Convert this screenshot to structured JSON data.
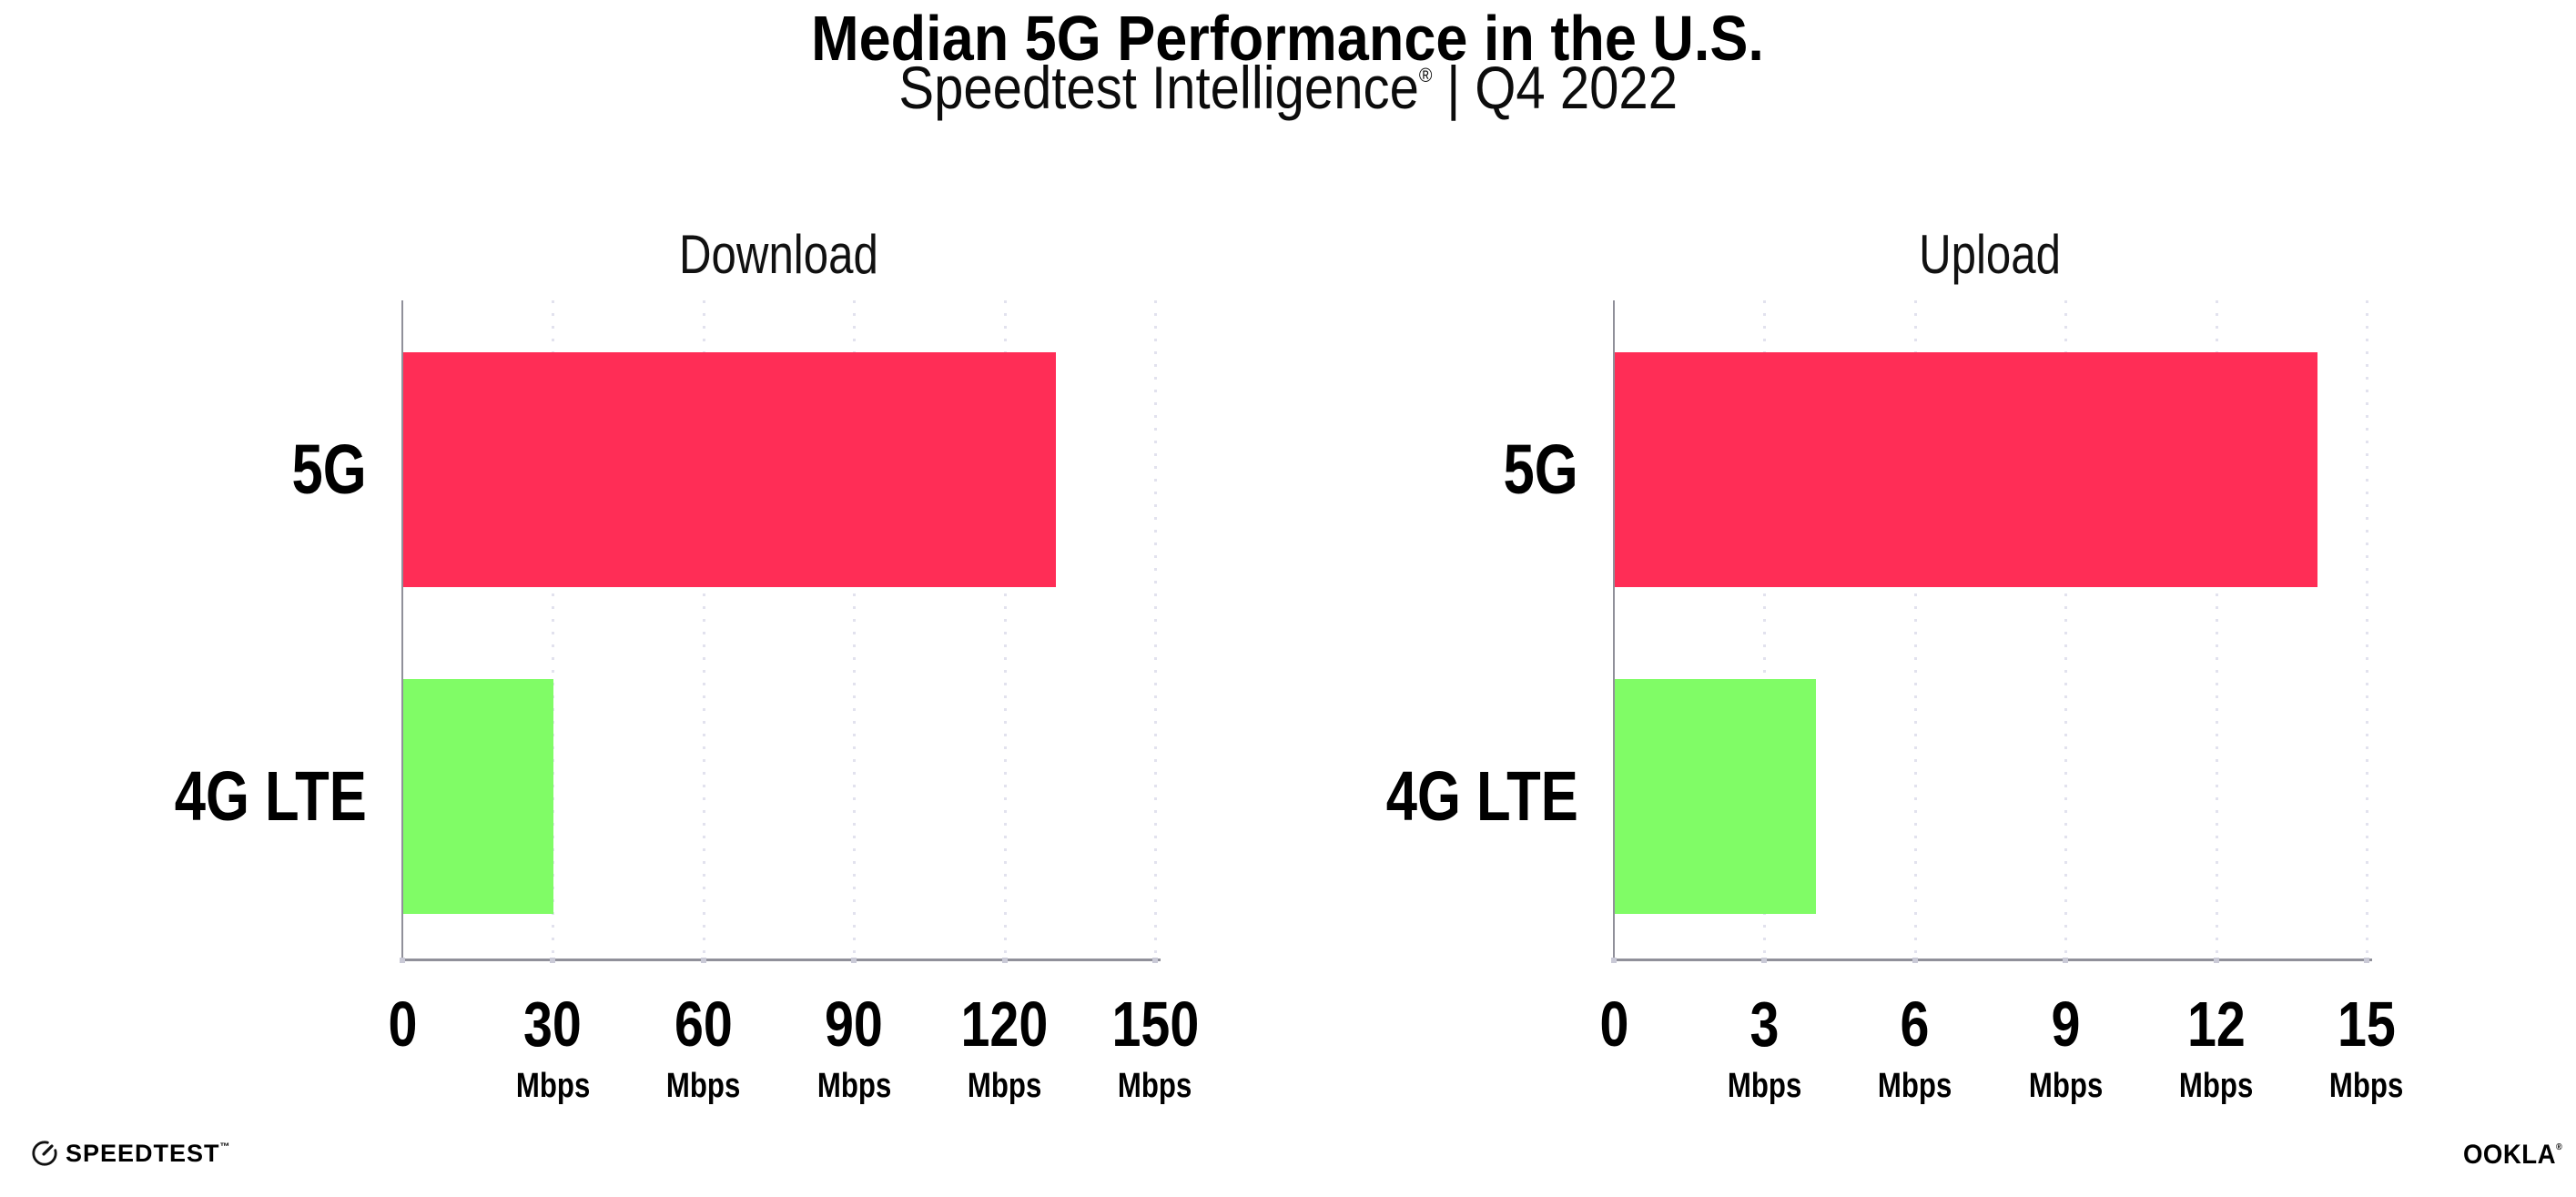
{
  "title": "Median 5G Performance in the U.S.",
  "subtitle": {
    "brand": "Speedtest Intelligence",
    "trademark": "®",
    "separator": "|",
    "period": "Q4 2022"
  },
  "chart_data": [
    {
      "type": "bar",
      "orientation": "horizontal",
      "title": "Download",
      "categories": [
        "5G",
        "4G LTE"
      ],
      "values": [
        130,
        30
      ],
      "unit": "Mbps",
      "xticks": [
        0,
        30,
        60,
        90,
        120,
        150
      ],
      "xlim": [
        0,
        150
      ],
      "bar_colors": [
        "#FF2D56",
        "#80FC66"
      ],
      "grid": "dotted-vertical",
      "legend": "none"
    },
    {
      "type": "bar",
      "orientation": "horizontal",
      "title": "Upload",
      "categories": [
        "5G",
        "4G LTE"
      ],
      "values": [
        14,
        4
      ],
      "unit": "Mbps",
      "xticks": [
        0,
        3,
        6,
        9,
        12,
        15
      ],
      "xlim": [
        0,
        15
      ],
      "bar_colors": [
        "#FF2D56",
        "#80FC66"
      ],
      "grid": "dotted-vertical",
      "legend": "none"
    }
  ],
  "colors": {
    "bar_5g": "#FF2D56",
    "bar_4g_lte": "#80FC66",
    "axis": "#90909a",
    "gridline_dots": "#e2e2ee",
    "axis_tick_dots": "#c9c9d6",
    "text": "#000000",
    "background": "#ffffff"
  },
  "footer": {
    "speedtest_label": "SPEEDTEST",
    "speedtest_trademark": "™",
    "ookla_label": "OOKLA",
    "ookla_trademark": "®"
  }
}
